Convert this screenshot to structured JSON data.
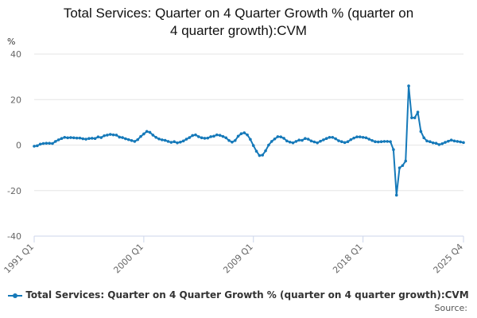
{
  "chart_data": {
    "type": "line",
    "title_lines": [
      "Total Services: Quarter on 4 Quarter Growth % (quarter on",
      "4 quarter growth):CVM"
    ],
    "unit_label": "%",
    "ylim": [
      -40,
      40
    ],
    "yticks": [
      "40",
      "20",
      "0",
      "-20",
      "-40"
    ],
    "xticks": [
      "1991 Q1",
      "2000 Q1",
      "2009 Q1",
      "2018 Q1",
      "2025 Q4"
    ],
    "grid": true,
    "legend": "bottom",
    "series": [
      {
        "name": "Total Services: Quarter on 4 Quarter Growth % (quarter on 4 quarter growth):CVM",
        "color": "#1579b9",
        "values": [
          -0.5,
          -0.3,
          0.4,
          0.7,
          0.8,
          0.8,
          0.7,
          1.6,
          2.3,
          2.9,
          3.4,
          3.2,
          3.3,
          3.2,
          3.1,
          3.1,
          2.8,
          2.6,
          2.9,
          3.0,
          2.9,
          3.6,
          3.3,
          4.1,
          4.4,
          4.7,
          4.5,
          4.4,
          3.5,
          3.3,
          2.8,
          2.4,
          2.0,
          1.6,
          2.4,
          3.8,
          4.9,
          6.0,
          5.6,
          4.4,
          3.4,
          2.7,
          2.3,
          2.1,
          1.6,
          1.2,
          1.5,
          1.0,
          1.3,
          1.8,
          2.6,
          3.3,
          4.2,
          4.5,
          3.7,
          3.2,
          3.0,
          3.1,
          3.7,
          3.9,
          4.5,
          4.3,
          3.8,
          3.2,
          2.0,
          1.3,
          2.0,
          3.9,
          5.0,
          5.4,
          4.5,
          2.5,
          -0.2,
          -2.7,
          -4.6,
          -4.4,
          -2.5,
          0.0,
          1.6,
          2.7,
          3.7,
          3.6,
          3.0,
          1.8,
          1.3,
          1.0,
          1.6,
          2.2,
          2.1,
          2.9,
          2.6,
          1.8,
          1.4,
          1.0,
          1.7,
          2.3,
          2.9,
          3.4,
          3.4,
          2.8,
          1.9,
          1.5,
          1.1,
          1.5,
          2.4,
          3.1,
          3.6,
          3.6,
          3.4,
          3.2,
          2.6,
          2.0,
          1.5,
          1.4,
          1.5,
          1.6,
          1.6,
          1.5,
          -2.0,
          -22.0,
          -10.0,
          -9.0,
          -7.0,
          26.0,
          12.0,
          12.0,
          14.5,
          6.0,
          3.2,
          1.8,
          1.5,
          1.0,
          0.8,
          0.2,
          0.6,
          1.2,
          1.7,
          2.2,
          1.8,
          1.6,
          1.4,
          1.1
        ]
      }
    ]
  },
  "footer": {
    "source_label": "Source:"
  }
}
